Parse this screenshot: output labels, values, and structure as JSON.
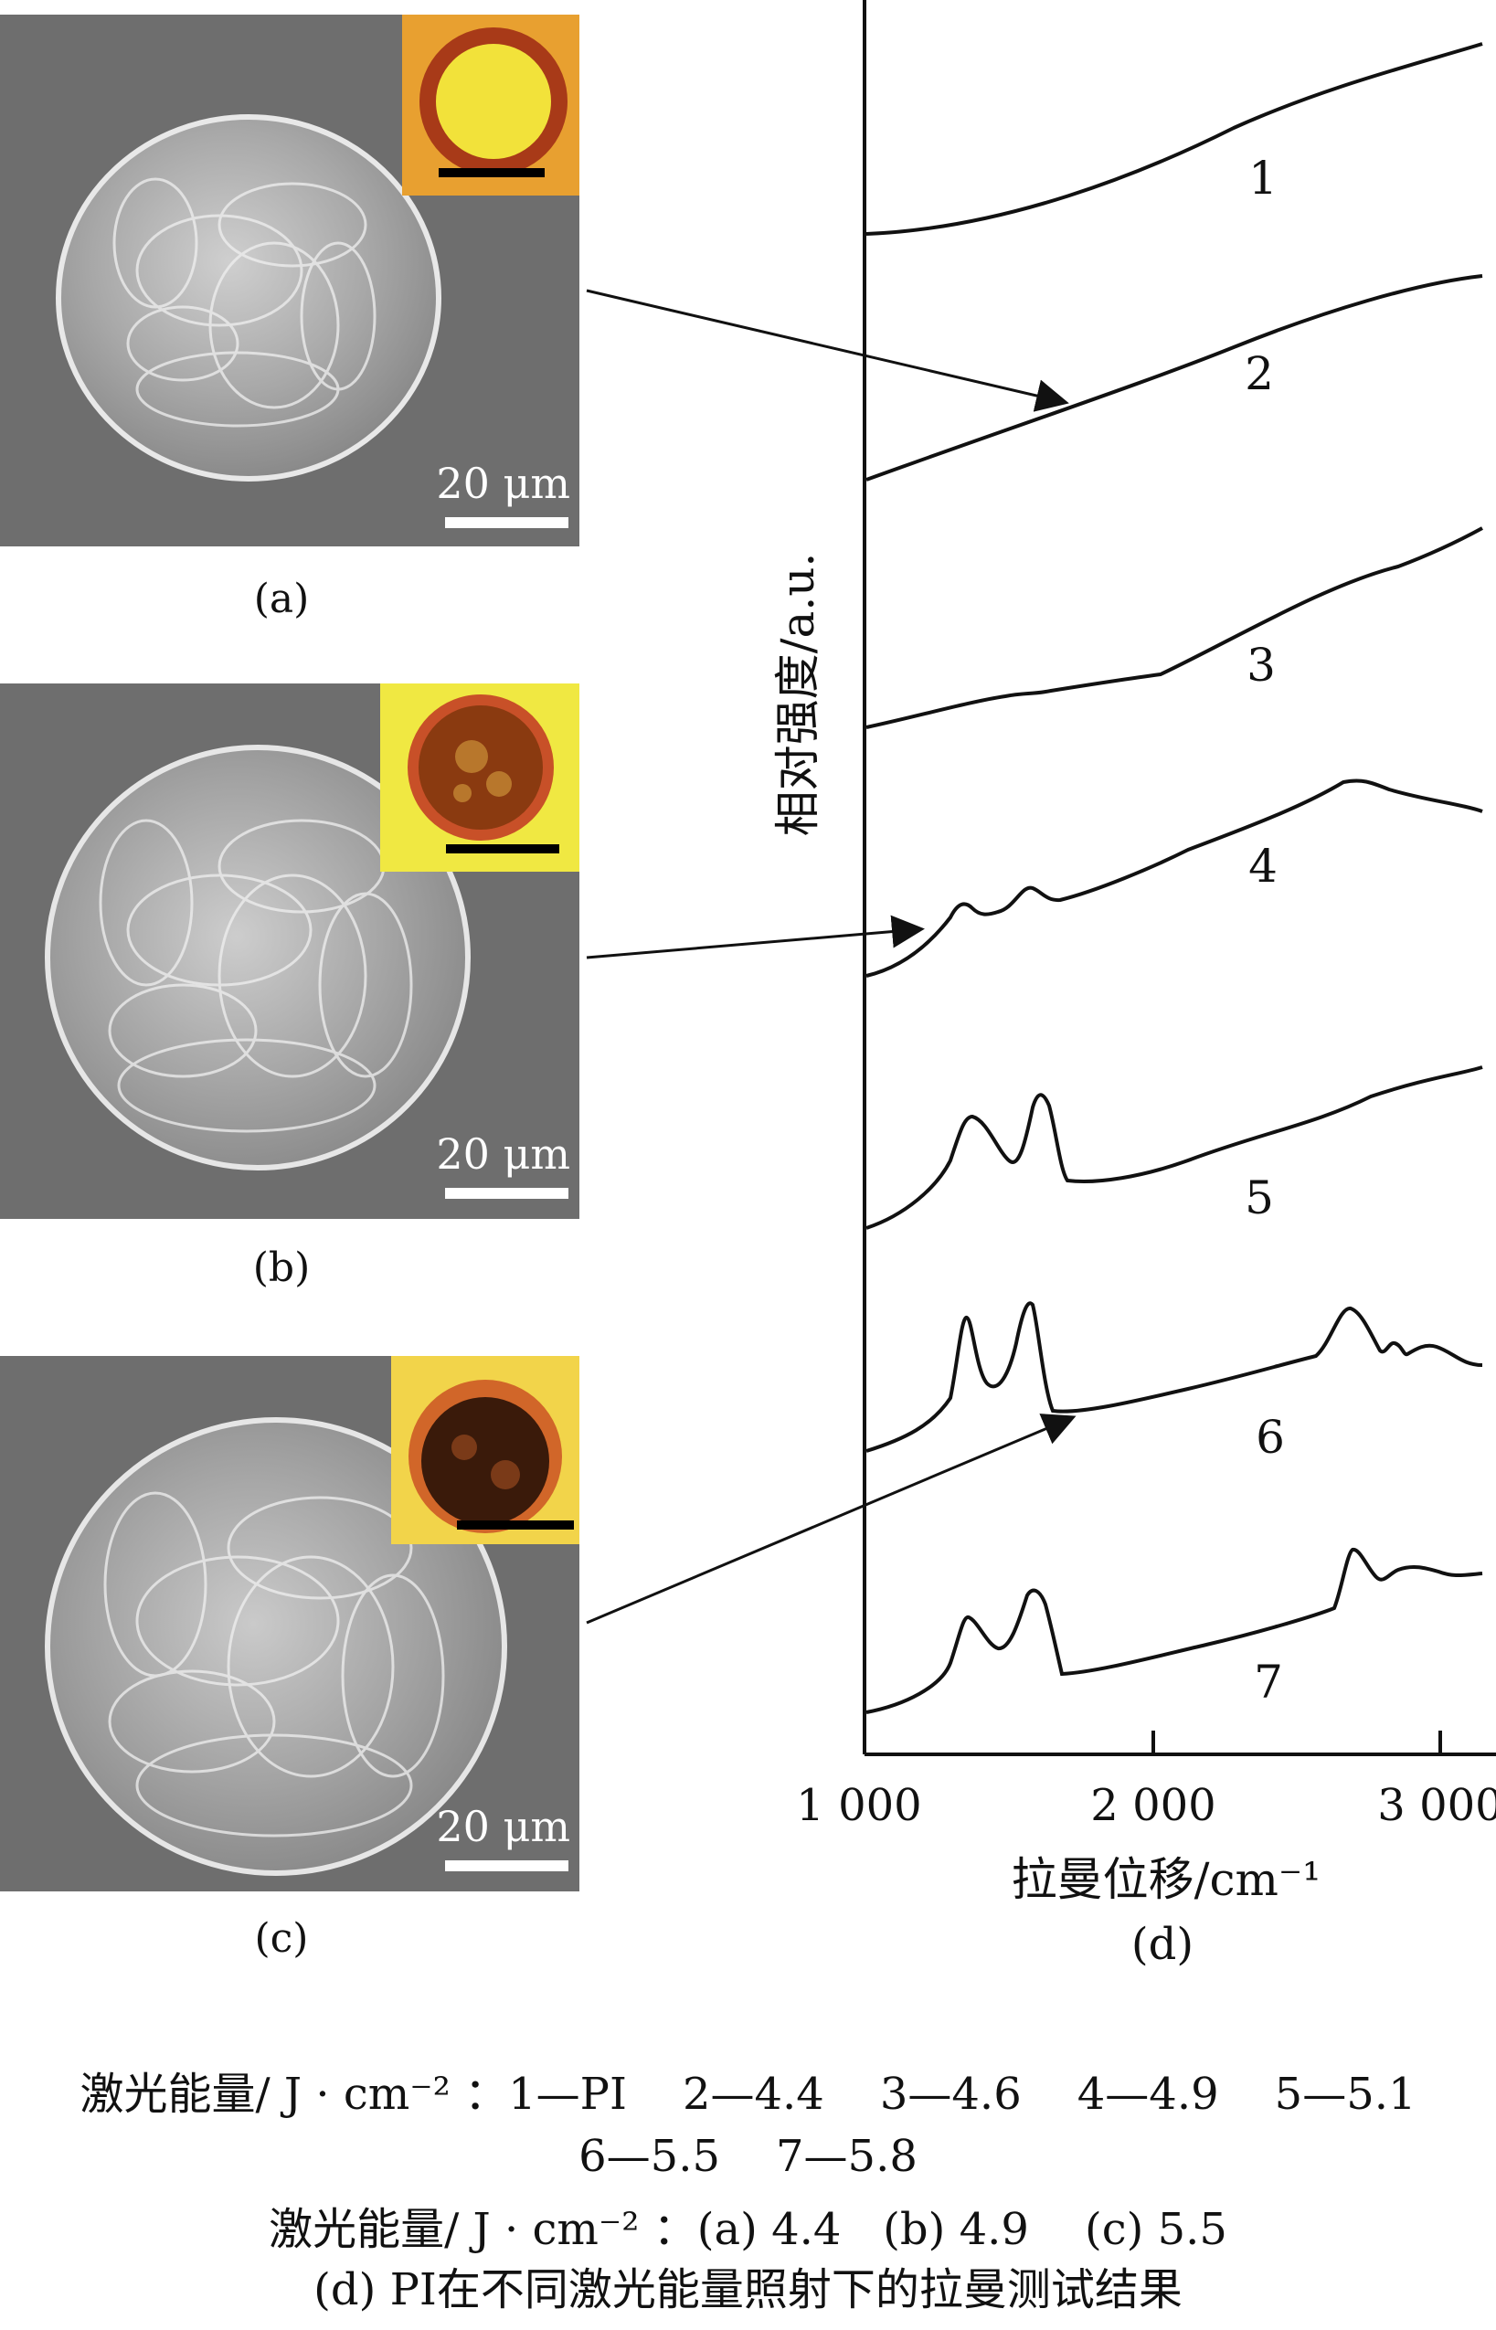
{
  "panels": [
    {
      "label": "(a)",
      "scale": "20 μm"
    },
    {
      "label": "(b)",
      "scale": "20 μm"
    },
    {
      "label": "(c)",
      "scale": "20 μm"
    }
  ],
  "raman": {
    "label": "(d)",
    "ylabel": "相对强度/a.u.",
    "xlabel": "拉曼位移/cm⁻¹",
    "xticks": [
      "1 000",
      "2 000",
      "3 000"
    ],
    "curves": [
      "1",
      "2",
      "3",
      "4",
      "5",
      "6",
      "7"
    ]
  },
  "caption": {
    "line1": "激光能量/ J · cm⁻² ：1—PI    2—4.4    3—4.6    4—4.9    5—5.1",
    "line2": "6—5.5    7—5.8",
    "line3": "激光能量/ J · cm⁻² ：(a) 4.4   (b) 4.9    (c) 5.5",
    "line4": "(d) PI在不同激光能量照射下的拉曼测试结果"
  },
  "colors": {
    "sem_background": "#6e6e6e",
    "inset_background": "#f2e23a",
    "ring": "#a83a18",
    "line": "#111111"
  }
}
